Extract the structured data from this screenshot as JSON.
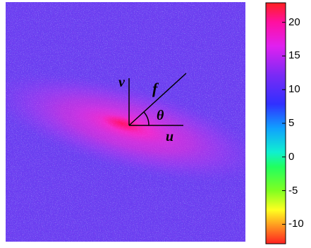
{
  "chart_data": {
    "type": "heatmap",
    "title": "",
    "xlabel": "",
    "ylabel": "",
    "description_labels": {
      "u": "u",
      "v": "v",
      "f": "f",
      "theta": "θ"
    },
    "colorbar": {
      "range": [
        -13,
        23
      ],
      "ticks": [
        {
          "value": 20,
          "label": "20"
        },
        {
          "value": 15,
          "label": "15"
        },
        {
          "value": 10,
          "label": "10"
        },
        {
          "value": 5,
          "label": "5"
        },
        {
          "value": 0,
          "label": "0"
        },
        {
          "value": -5,
          "label": "-5"
        },
        {
          "value": -10,
          "label": "-10"
        }
      ],
      "colormap": "hsv-like (red-yellow-green-cyan-blue-purple-magenta-red)"
    },
    "field": {
      "background_level": 12,
      "peak_level": 19,
      "orientation_deg": 15,
      "pattern": "speckled noise with elongated bright band through center"
    }
  }
}
